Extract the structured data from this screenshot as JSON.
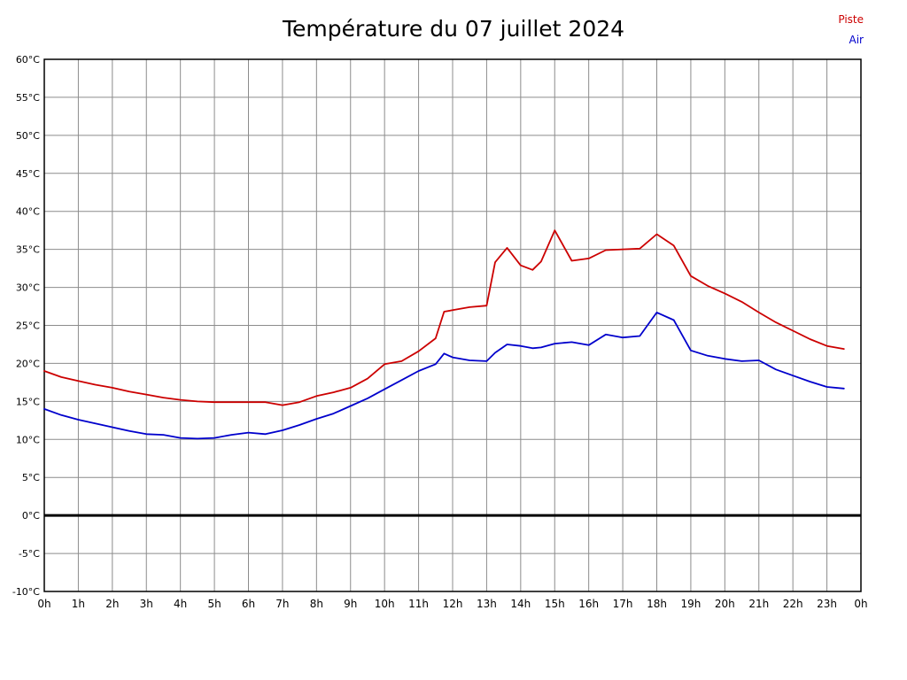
{
  "legend": {
    "items": [
      {
        "label": "Piste",
        "color": "#cc0000"
      },
      {
        "label": "Air",
        "color": "#0000cc"
      }
    ]
  },
  "colors": {
    "grid": "#8c8c8c",
    "axis": "#000000",
    "zero_line": "#000000",
    "background": "#ffffff",
    "piste": "#cc0000",
    "air": "#0000cc"
  },
  "chart_data": {
    "type": "line",
    "title": "Température du 07 juillet 2024",
    "xlabel": "",
    "ylabel": "",
    "xlim": [
      0,
      24
    ],
    "ylim": [
      -10,
      60
    ],
    "grid": true,
    "zero_line_at": 0,
    "legend_position": "top-right",
    "x_unit": "hours",
    "y_unit": "°C",
    "x_tick_labels": [
      "0h",
      "1h",
      "2h",
      "3h",
      "4h",
      "5h",
      "6h",
      "7h",
      "8h",
      "9h",
      "10h",
      "11h",
      "12h",
      "13h",
      "14h",
      "15h",
      "16h",
      "17h",
      "18h",
      "19h",
      "20h",
      "21h",
      "22h",
      "23h",
      "0h"
    ],
    "y_ticks": [
      60,
      55,
      50,
      45,
      40,
      35,
      30,
      25,
      20,
      15,
      10,
      5,
      0,
      -5,
      -10
    ],
    "y_tick_labels": [
      "60°C",
      "55°C",
      "50°C",
      "45°C",
      "40°C",
      "35°C",
      "30°C",
      "25°C",
      "20°C",
      "15°C",
      "10°C",
      "5°C",
      "0°C",
      "-5°C",
      "-10°C"
    ],
    "x": [
      0,
      0.5,
      1,
      1.5,
      2,
      2.5,
      3,
      3.5,
      4,
      4.5,
      5,
      5.5,
      6,
      6.5,
      7,
      7.5,
      8,
      8.5,
      9,
      9.5,
      10,
      10.5,
      11,
      11.5,
      11.75,
      12,
      12.5,
      13,
      13.25,
      13.6,
      14,
      14.35,
      14.6,
      15,
      15.5,
      16,
      16.5,
      17,
      17.5,
      18,
      18.5,
      19,
      19.5,
      20,
      20.5,
      21,
      21.5,
      22,
      22.5,
      23,
      23.5
    ],
    "series": [
      {
        "name": "Piste",
        "color": "#cc0000",
        "values": [
          19,
          18.2,
          17.7,
          17.2,
          16.8,
          16.3,
          15.9,
          15.5,
          15.2,
          15,
          14.9,
          14.9,
          14.9,
          14.9,
          14.5,
          14.9,
          15.7,
          16.2,
          16.8,
          18,
          19.9,
          20.3,
          21.6,
          23.3,
          26.8,
          27,
          27.4,
          27.6,
          33.3,
          35.2,
          32.9,
          32.3,
          33.4,
          37.5,
          33.5,
          33.8,
          34.9,
          35,
          35.1,
          37,
          35.5,
          31.5,
          30.2,
          29.2,
          28.1,
          26.7,
          25.4,
          24.3,
          23.2,
          22.3,
          21.9
        ]
      },
      {
        "name": "Air",
        "color": "#0000cc",
        "values": [
          14,
          13.2,
          12.6,
          12.1,
          11.6,
          11.1,
          10.7,
          10.6,
          10.2,
          10.1,
          10.2,
          10.6,
          10.9,
          10.7,
          11.2,
          11.9,
          12.7,
          13.4,
          14.4,
          15.4,
          16.6,
          17.8,
          19,
          19.9,
          21.3,
          20.8,
          20.4,
          20.3,
          21.4,
          22.5,
          22.3,
          22,
          22.1,
          22.6,
          22.8,
          22.4,
          23.8,
          23.4,
          23.6,
          26.7,
          25.7,
          21.7,
          21,
          20.6,
          20.3,
          20.4,
          19.2,
          18.4,
          17.6,
          16.9,
          16.7
        ]
      }
    ]
  }
}
